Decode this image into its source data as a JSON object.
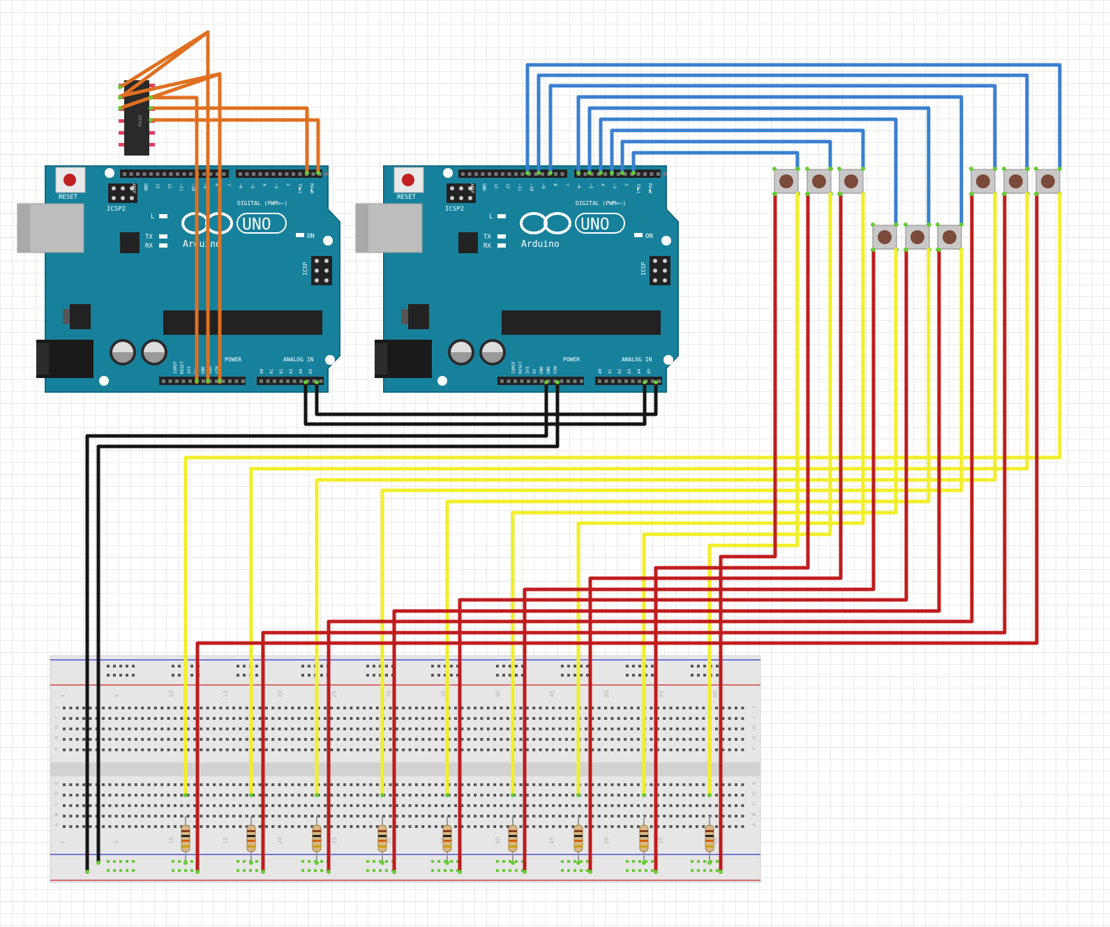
{
  "colors": {
    "board": "#17819c",
    "board_dark": "#0f6880",
    "wire_orange": "#e07020",
    "wire_blue": "#3a7fd0",
    "wire_red": "#c01c1c",
    "wire_yellow": "#f2ee2a",
    "wire_black": "#151515",
    "breadboard": "#e6e6e6",
    "rail_red": "#d04040",
    "rail_blue": "#4a50d0",
    "pin_green": "#66cc33"
  },
  "arduino_left": {
    "reset": "RESET",
    "icsp2": "ICSP2",
    "icsp": "ICSP",
    "logo": "∞",
    "model": "UNO",
    "brand": "Arduino",
    "digital": "DIGITAL (PWM=~)",
    "analog": "ANALOG IN",
    "power": "POWER",
    "on": "ON",
    "tx": "TX",
    "rx": "RX",
    "l": "L",
    "pins_top": [
      "AREF",
      "GND",
      "13",
      "12",
      "~11",
      "~10",
      "~9",
      "8",
      "7",
      "~6",
      "~5",
      "4",
      "~3",
      "2",
      "TX▶1",
      "RX◀0"
    ],
    "pins_power": [
      "IOREF",
      "RESET",
      "3V3",
      "5V",
      "GND",
      "GND",
      "VIN"
    ],
    "pins_analog": [
      "A0",
      "A1",
      "A2",
      "A3",
      "A4",
      "A5"
    ]
  },
  "arduino_right": {
    "reset": "RESET",
    "icsp2": "ICSP2",
    "icsp": "ICSP",
    "logo": "∞",
    "model": "UNO",
    "brand": "Arduino",
    "digital": "DIGITAL (PWM=~)",
    "analog": "ANALOG IN",
    "power": "POWER",
    "on": "ON",
    "tx": "TX",
    "rx": "RX",
    "l": "L"
  },
  "chip": {
    "label": "DFR0"
  },
  "breadboard": {
    "column_numbers": [
      "1",
      "5",
      "10",
      "15",
      "20",
      "25",
      "30",
      "35",
      "40",
      "45",
      "50",
      "55",
      "60"
    ],
    "row_letters_top": [
      "J",
      "I",
      "H",
      "G",
      "F"
    ],
    "row_letters_bottom": [
      "E",
      "D",
      "C",
      "B",
      "A"
    ]
  },
  "buttons_count_label": "",
  "resistors_count_label": ""
}
